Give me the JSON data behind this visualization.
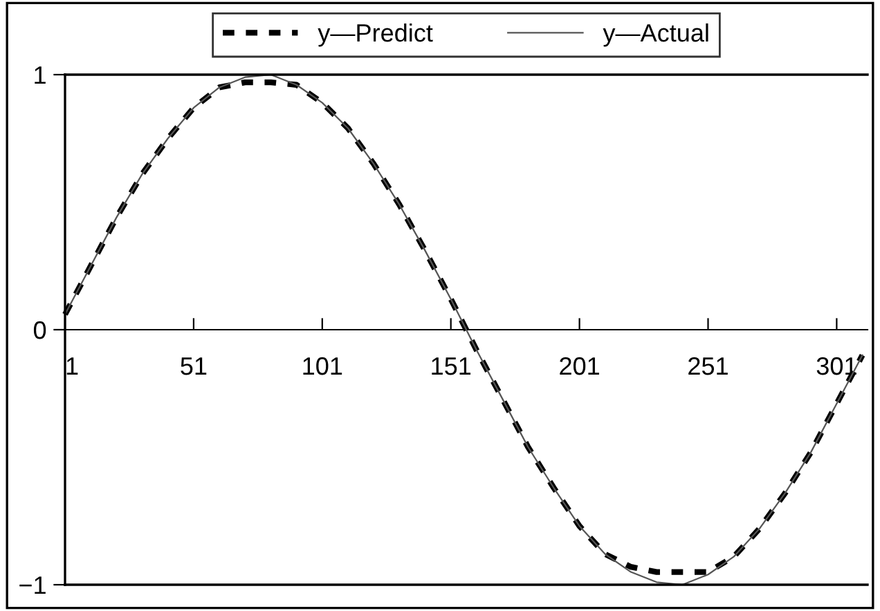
{
  "chart_data": {
    "type": "line",
    "x": [
      1,
      11,
      21,
      31,
      41,
      51,
      61,
      71,
      81,
      91,
      101,
      111,
      121,
      131,
      141,
      151,
      161,
      171,
      181,
      191,
      201,
      211,
      221,
      231,
      241,
      251,
      261,
      271,
      281,
      291,
      301,
      311
    ],
    "series": [
      {
        "name": "y—Predict",
        "color": "#000000",
        "line_style": "dashed",
        "values": [
          0.06,
          0.25,
          0.44,
          0.61,
          0.75,
          0.87,
          0.95,
          0.97,
          0.97,
          0.96,
          0.89,
          0.79,
          0.65,
          0.49,
          0.31,
          0.12,
          -0.08,
          -0.27,
          -0.46,
          -0.62,
          -0.77,
          -0.88,
          -0.93,
          -0.95,
          -0.95,
          -0.95,
          -0.89,
          -0.78,
          -0.64,
          -0.48,
          -0.29,
          -0.1
        ]
      },
      {
        "name": "y—Actual",
        "color": "#555555",
        "line_style": "solid",
        "values": [
          0.06,
          0.25,
          0.44,
          0.61,
          0.75,
          0.87,
          0.95,
          0.99,
          1.0,
          0.96,
          0.89,
          0.79,
          0.65,
          0.49,
          0.31,
          0.12,
          -0.08,
          -0.27,
          -0.46,
          -0.62,
          -0.77,
          -0.88,
          -0.95,
          -0.99,
          -1.0,
          -0.96,
          -0.89,
          -0.78,
          -0.64,
          -0.48,
          -0.29,
          -0.1
        ]
      }
    ],
    "xlim": [
      1,
      313
    ],
    "xticks": [
      1,
      51,
      101,
      151,
      201,
      251,
      301
    ],
    "ylim": [
      -1,
      1
    ],
    "yticks": [
      -1,
      0,
      1
    ],
    "legend": "top",
    "marker": "none"
  }
}
